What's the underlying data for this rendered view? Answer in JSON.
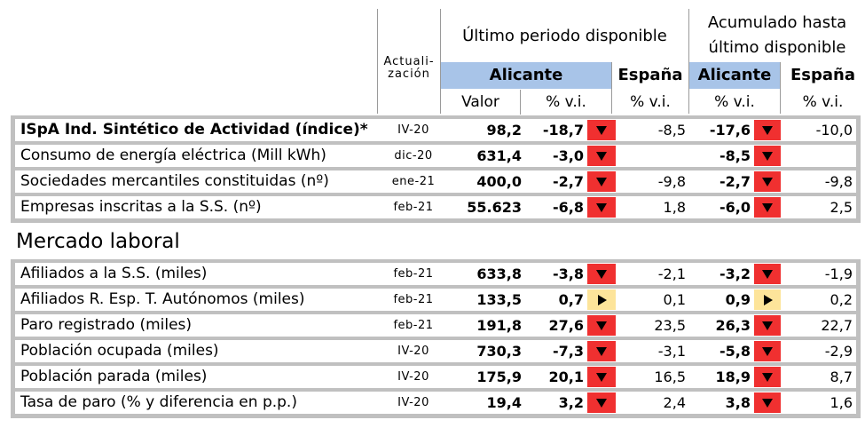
{
  "header": {
    "update_col": [
      "Actuali-",
      "zación"
    ],
    "last_period": "Último periodo disponible",
    "accumulated": [
      "Acumulado hasta",
      "último disponible"
    ],
    "region1": "Alicante",
    "country1": "España",
    "region2": "Alicante",
    "country2": "España",
    "sub_value": "Valor",
    "sub_pct1": "% v.i.",
    "sub_pct2": "% v.i.",
    "sub_pct3": "% v.i.",
    "sub_pct4": "% v.i."
  },
  "activity_rows": [
    {
      "label": "ISpA Ind. Sintético de Actividad (índice)*",
      "update": "IV-20",
      "value": "98,2",
      "pct1": "-18,7",
      "ind1": "down",
      "esp1": "-8,5",
      "pct2": "-17,6",
      "ind2": "down",
      "esp2": "-10,0"
    },
    {
      "label": "Consumo de energía eléctrica (Mill kWh)",
      "update": "dic-20",
      "value": "631,4",
      "pct1": "-3,0",
      "ind1": "down",
      "esp1": "",
      "pct2": "-8,5",
      "ind2": "down",
      "esp2": ""
    },
    {
      "label": "Sociedades mercantiles constituidas (nº)",
      "update": "ene-21",
      "value": "400,0",
      "pct1": "-2,7",
      "ind1": "down",
      "esp1": "-9,8",
      "pct2": "-2,7",
      "ind2": "down",
      "esp2": "-9,8"
    },
    {
      "label": "Empresas inscritas a la S.S. (nº)",
      "update": "feb-21",
      "value": "55.623",
      "pct1": "-6,8",
      "ind1": "down",
      "esp1": "1,8",
      "pct2": "-6,0",
      "ind2": "down",
      "esp2": "2,5"
    }
  ],
  "labour_section": "Mercado laboral",
  "labour_rows": [
    {
      "label": "Afiliados a la S.S. (miles)",
      "update": "feb-21",
      "value": "633,8",
      "pct1": "-3,8",
      "ind1": "down",
      "esp1": "-2,1",
      "pct2": "-3,2",
      "ind2": "down",
      "esp2": "-1,9"
    },
    {
      "label": "Afiliados R. Esp. T. Autónomos (miles)",
      "update": "feb-21",
      "value": "133,5",
      "pct1": "0,7",
      "ind1": "right",
      "esp1": "0,1",
      "pct2": "0,9",
      "ind2": "right",
      "esp2": "0,2"
    },
    {
      "label": "Paro registrado (miles)",
      "update": "feb-21",
      "value": "191,8",
      "pct1": "27,6",
      "ind1": "down",
      "esp1": "23,5",
      "pct2": "26,3",
      "ind2": "down",
      "esp2": "22,7"
    },
    {
      "label": "Población ocupada (miles)",
      "update": "IV-20",
      "value": "730,3",
      "pct1": "-7,3",
      "ind1": "down",
      "esp1": "-3,1",
      "pct2": "-5,8",
      "ind2": "down",
      "esp2": "-2,9"
    },
    {
      "label": "Población parada (miles)",
      "update": "IV-20",
      "value": "175,9",
      "pct1": "20,1",
      "ind1": "down",
      "esp1": "16,5",
      "pct2": "18,9",
      "ind2": "down",
      "esp2": "8,7"
    },
    {
      "label": "Tasa de paro (% y diferencia en p.p.)",
      "update": "IV-20",
      "value": "19,4",
      "pct1": "3,2",
      "ind1": "down",
      "esp1": "2,4",
      "pct2": "3,8",
      "ind2": "down",
      "esp2": "1,6"
    }
  ],
  "colors": {
    "header_blue": "#a8c4e8",
    "indicator_down": "#f03030",
    "indicator_flat": "#fde49a",
    "frame_grey": "#c0c0c0"
  }
}
